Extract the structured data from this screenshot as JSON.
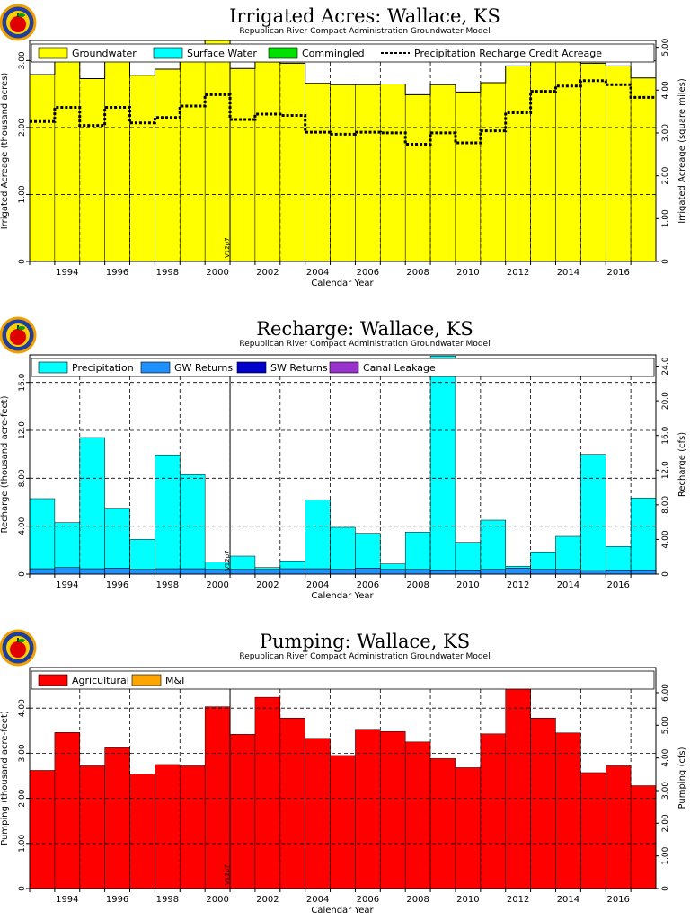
{
  "chart_data": [
    {
      "type": "bar",
      "title": "Irrigated Acres: Wallace, KS",
      "subtitle": "Republican River Compact Administration Groundwater Model",
      "xlabel": "Calendar Year",
      "ylabel": "Irrigated Acreage (thousand acres)",
      "ylabel_right": "Irrigated Acreage (square miles)",
      "ylim": [
        0,
        3.3
      ],
      "yticks": [
        {
          "v": 0,
          "label": "0"
        },
        {
          "v": 1,
          "label": "1.00"
        },
        {
          "v": 2,
          "label": "2.00"
        },
        {
          "v": 3,
          "label": "3.00"
        }
      ],
      "ylim_right": [
        0,
        5.16
      ],
      "yticks_right": [
        {
          "v": 0,
          "label": "0"
        },
        {
          "v": 1,
          "label": "1.00"
        },
        {
          "v": 2,
          "label": "2.00"
        },
        {
          "v": 3,
          "label": "3.00"
        },
        {
          "v": 4,
          "label": "4.00"
        },
        {
          "v": 5,
          "label": "5.00"
        }
      ],
      "legend": [
        "Groundwater",
        "Surface Water",
        "Commingled",
        "Precipitation Recharge Credit Acreage"
      ],
      "legend_colors": [
        "#ffff00",
        "#00ffff",
        "#00e000",
        "#000000"
      ],
      "annotation": "V12p7",
      "annotation_year": 2000,
      "categories": [
        1993,
        1994,
        1995,
        1996,
        1997,
        1998,
        1999,
        2000,
        2001,
        2002,
        2003,
        2004,
        2005,
        2006,
        2007,
        2008,
        2009,
        2010,
        2011,
        2012,
        2013,
        2014,
        2015,
        2016,
        2017
      ],
      "x_tick_labels": [
        "1994",
        "1996",
        "1998",
        "2000",
        "2002",
        "2004",
        "2006",
        "2008",
        "2010",
        "2012",
        "2014",
        "2016"
      ],
      "series": [
        {
          "name": "Groundwater",
          "type": "bar",
          "color": "#ffff00",
          "values": [
            2.79,
            3.08,
            2.73,
            3.06,
            2.78,
            2.87,
            3.08,
            3.3,
            2.88,
            2.98,
            2.96,
            2.66,
            2.64,
            2.64,
            2.65,
            2.49,
            2.64,
            2.53,
            2.67,
            2.92,
            3.15,
            3.19,
            2.96,
            2.92,
            2.74
          ]
        },
        {
          "name": "Precipitation Recharge Credit Acreage",
          "type": "step",
          "color": "#000000",
          "values": [
            2.09,
            2.3,
            2.03,
            2.3,
            2.07,
            2.15,
            2.32,
            2.49,
            2.12,
            2.2,
            2.18,
            1.93,
            1.9,
            1.93,
            1.92,
            1.75,
            1.92,
            1.77,
            1.95,
            2.22,
            2.54,
            2.62,
            2.7,
            2.64,
            2.45
          ]
        }
      ]
    },
    {
      "type": "bar",
      "title": "Recharge: Wallace, KS",
      "subtitle": "Republican River Compact Administration Groundwater Model",
      "xlabel": "Calendar Year",
      "ylabel": "Recharge (thousand acre-feet)",
      "ylabel_right": "Recharge (cfs)",
      "ylim": [
        0,
        18.3
      ],
      "yticks": [
        {
          "v": 0,
          "label": "0"
        },
        {
          "v": 4,
          "label": "4.00"
        },
        {
          "v": 8,
          "label": "8.00"
        },
        {
          "v": 12,
          "label": "12.0"
        },
        {
          "v": 16,
          "label": "16.0"
        }
      ],
      "ylim_right": [
        0,
        25.3
      ],
      "yticks_right": [
        {
          "v": 0,
          "label": "0"
        },
        {
          "v": 4,
          "label": "4.00"
        },
        {
          "v": 8,
          "label": "8.00"
        },
        {
          "v": 12,
          "label": "12.0"
        },
        {
          "v": 16,
          "label": "16.0"
        },
        {
          "v": 20,
          "label": "20.0"
        },
        {
          "v": 24,
          "label": "24.0"
        }
      ],
      "legend": [
        "Precipitation",
        "GW Returns",
        "SW Returns",
        "Canal Leakage"
      ],
      "legend_colors": [
        "#00ffff",
        "#1e90ff",
        "#0000cd",
        "#9932cc"
      ],
      "annotation": "V12p7",
      "annotation_year": 2000,
      "categories": [
        1993,
        1994,
        1995,
        1996,
        1997,
        1998,
        1999,
        2000,
        2001,
        2002,
        2003,
        2004,
        2005,
        2006,
        2007,
        2008,
        2009,
        2010,
        2011,
        2012,
        2013,
        2014,
        2015,
        2016,
        2017
      ],
      "x_tick_labels": [
        "1994",
        "1996",
        "1998",
        "2000",
        "2002",
        "2004",
        "2006",
        "2008",
        "2010",
        "2012",
        "2014",
        "2016"
      ],
      "series": [
        {
          "name": "GW Returns",
          "type": "stack",
          "color": "#1e90ff",
          "values": [
            0.45,
            0.55,
            0.45,
            0.5,
            0.4,
            0.45,
            0.45,
            0.4,
            0.4,
            0.4,
            0.45,
            0.45,
            0.4,
            0.5,
            0.4,
            0.4,
            0.35,
            0.35,
            0.4,
            0.5,
            0.4,
            0.4,
            0.3,
            0.35,
            0.35
          ]
        },
        {
          "name": "Precipitation",
          "type": "stack",
          "color": "#00ffff",
          "values": [
            5.85,
            3.75,
            10.95,
            5.0,
            2.5,
            9.5,
            7.85,
            0.6,
            1.1,
            0.15,
            0.65,
            5.75,
            3.5,
            2.9,
            0.45,
            3.1,
            17.85,
            2.3,
            4.1,
            0.15,
            1.45,
            2.75,
            9.7,
            1.95,
            6.0
          ]
        }
      ]
    },
    {
      "type": "bar",
      "title": "Pumping: Wallace, KS",
      "subtitle": "Republican River Compact Administration Groundwater Model",
      "xlabel": "Calendar Year",
      "ylabel": "Pumping (thousand acre-feet)",
      "ylabel_right": "Pumping (cfs)",
      "ylim": [
        0,
        4.9
      ],
      "yticks": [
        {
          "v": 0,
          "label": "0"
        },
        {
          "v": 1,
          "label": "1.00"
        },
        {
          "v": 2,
          "label": "2.00"
        },
        {
          "v": 3,
          "label": "3.00"
        },
        {
          "v": 4,
          "label": "4.00"
        }
      ],
      "ylim_right": [
        0,
        6.77
      ],
      "yticks_right": [
        {
          "v": 0,
          "label": "0"
        },
        {
          "v": 1,
          "label": "1.00"
        },
        {
          "v": 2,
          "label": "2.00"
        },
        {
          "v": 3,
          "label": "3.00"
        },
        {
          "v": 4,
          "label": "4.00"
        },
        {
          "v": 5,
          "label": "5.00"
        },
        {
          "v": 6,
          "label": "6.00"
        }
      ],
      "legend": [
        "Agricultural",
        "M&I"
      ],
      "legend_colors": [
        "#ff0000",
        "#ffa500"
      ],
      "annotation": "V12p7",
      "annotation_year": 2000,
      "categories": [
        1993,
        1994,
        1995,
        1996,
        1997,
        1998,
        1999,
        2000,
        2001,
        2002,
        2003,
        2004,
        2005,
        2006,
        2007,
        2008,
        2009,
        2010,
        2011,
        2012,
        2013,
        2014,
        2015,
        2016,
        2017
      ],
      "x_tick_labels": [
        "1994",
        "1996",
        "1998",
        "2000",
        "2002",
        "2004",
        "2006",
        "2008",
        "2010",
        "2012",
        "2014",
        "2016"
      ],
      "series": [
        {
          "name": "Agricultural",
          "type": "stack",
          "color": "#ff0000",
          "values": [
            2.62,
            3.46,
            2.72,
            3.12,
            2.54,
            2.75,
            2.72,
            4.03,
            3.42,
            4.24,
            3.78,
            3.33,
            2.95,
            3.53,
            3.48,
            3.25,
            2.88,
            2.68,
            3.43,
            4.72,
            3.78,
            3.45,
            2.57,
            2.72,
            2.28
          ]
        }
      ]
    }
  ]
}
